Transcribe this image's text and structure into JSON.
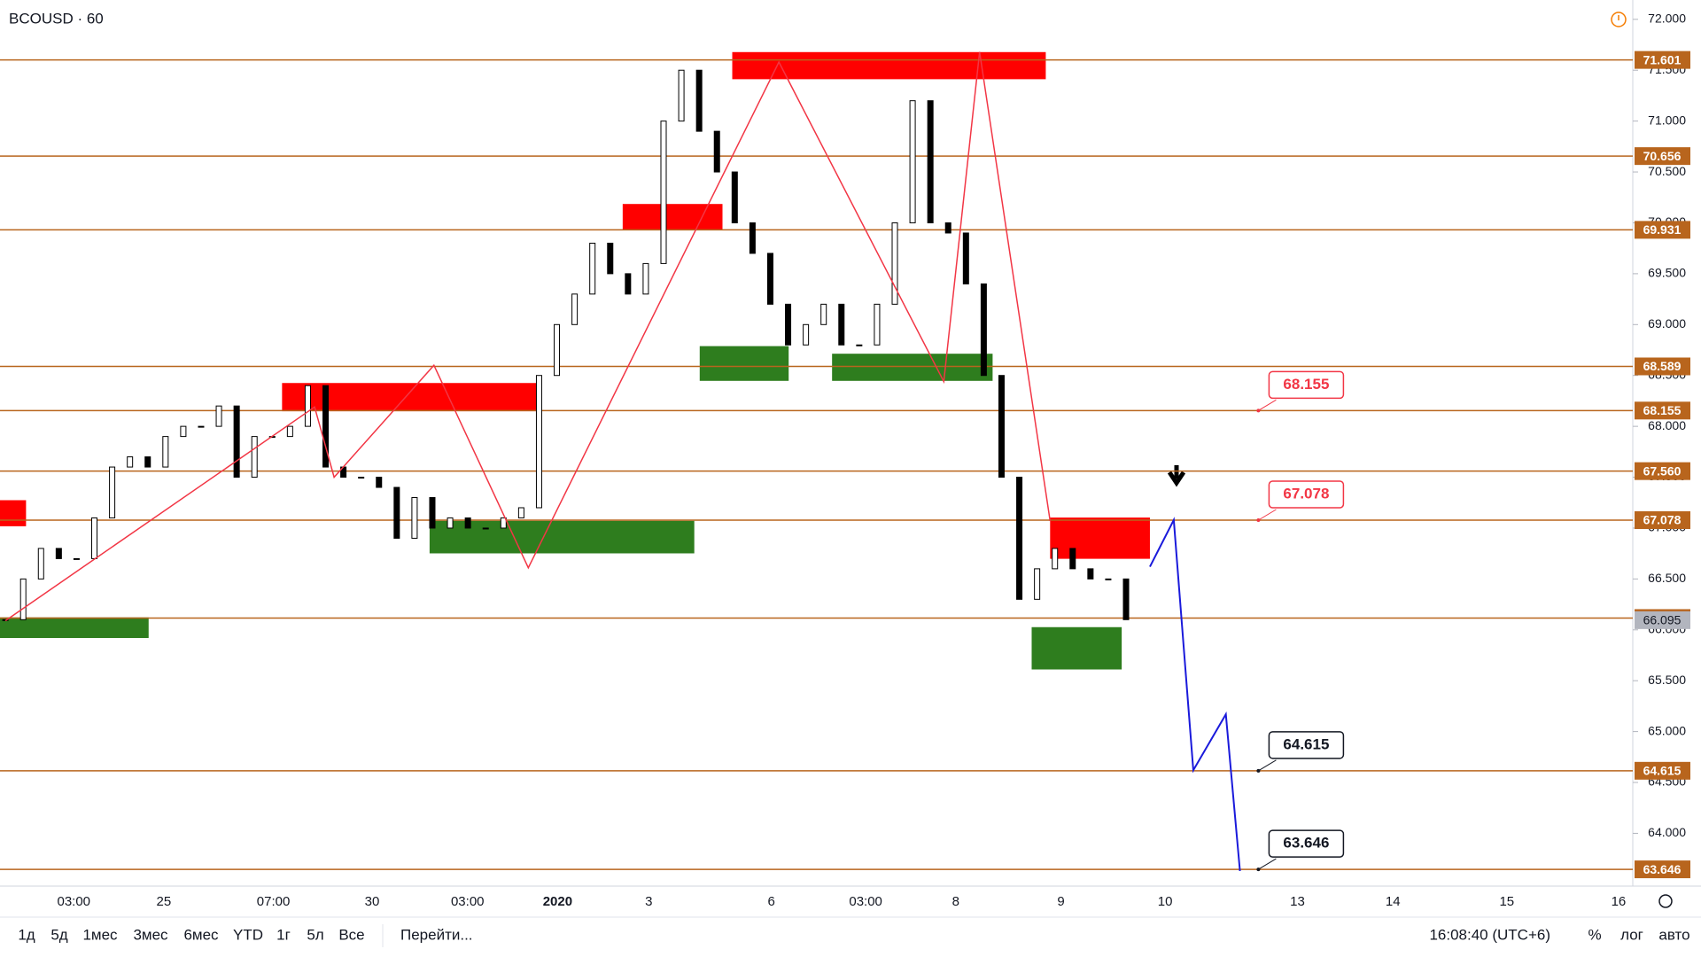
{
  "header": {
    "symbol": "BCOUSD · 60"
  },
  "chart_data": {
    "type": "candlestick",
    "ylim": [
      63.49,
      72.19
    ],
    "yticks": [
      {
        "value": 64,
        "label": "64.000"
      },
      {
        "value": 64.5,
        "label": "64.500"
      },
      {
        "value": 65,
        "label": "65.000"
      },
      {
        "value": 65.5,
        "label": "65.500"
      },
      {
        "value": 66,
        "label": "66.000"
      },
      {
        "value": 66.5,
        "label": "66.500"
      },
      {
        "value": 67,
        "label": "67.000"
      },
      {
        "value": 67.5,
        "label": "67.500"
      },
      {
        "value": 68,
        "label": "68.000"
      },
      {
        "value": 68.5,
        "label": "68.500"
      },
      {
        "value": 69,
        "label": "69.000"
      },
      {
        "value": 69.5,
        "label": "69.500"
      },
      {
        "value": 70,
        "label": "70.000"
      },
      {
        "value": 70.5,
        "label": "70.500"
      },
      {
        "value": 71,
        "label": "71.000"
      },
      {
        "value": 71.5,
        "label": "71.500"
      },
      {
        "value": 72,
        "label": "72.000"
      }
    ],
    "closes": [
      66.1,
      66.5,
      66.8,
      66.7,
      66.7,
      67.1,
      67.6,
      67.7,
      67.6,
      67.9,
      68.0,
      68.0,
      68.2,
      67.5,
      67.9,
      67.9,
      68.0,
      68.4,
      67.6,
      67.5,
      67.5,
      67.4,
      66.9,
      67.3,
      67.0,
      67.1,
      67.0,
      67.0,
      67.1,
      67.2,
      68.5,
      69.0,
      69.3,
      69.8,
      69.5,
      69.3,
      69.6,
      71.0,
      71.5,
      70.9,
      70.5,
      70.0,
      69.7,
      69.2,
      68.8,
      69.0,
      69.2,
      68.8,
      68.8,
      69.2,
      70.0,
      71.2,
      70.0,
      69.9,
      69.4,
      68.5,
      67.5,
      66.3,
      66.6,
      66.8,
      66.6,
      66.5,
      66.5,
      66.1
    ],
    "levels": [
      71.601,
      70.656,
      69.931,
      68.589,
      68.155,
      {
        "value": 67.56,
        "label": "67.560"
      },
      67.078,
      66.116,
      64.615,
      63.646
    ],
    "last_price": 66.095,
    "zigzag": [
      66.09,
      68.19,
      67.5,
      68.6,
      66.61,
      71.58,
      68.44,
      71.68,
      67.07
    ],
    "projection": [
      66.62,
      67.08,
      64.62,
      65.17,
      63.63
    ],
    "time_labels": [
      "03:00",
      "25",
      "07:00",
      "30",
      "03:00",
      "2020",
      "3",
      "6",
      "03:00",
      "8",
      "9",
      "10",
      "13",
      "14",
      "15",
      "16"
    ]
  },
  "toolbar": {
    "ranges": [
      "1д",
      "5д",
      "1мес",
      "3мес",
      "6мес",
      "YTD",
      "1г",
      "5л",
      "Все"
    ],
    "goto": "Перейти...",
    "clock": "16:08:40 (UTC+6)",
    "percent": "%",
    "log": "лог",
    "auto": "авто"
  }
}
